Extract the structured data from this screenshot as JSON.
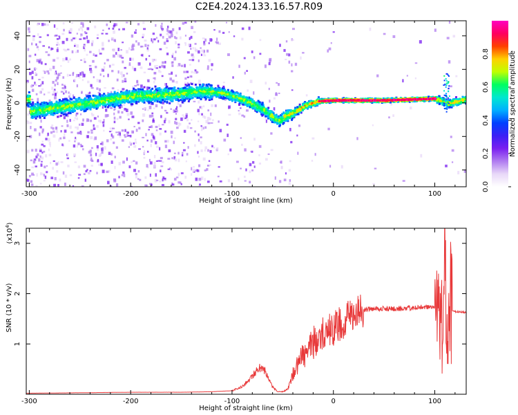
{
  "title": "C2E4.2024.133.16.57.R09",
  "colors": {
    "snr_line": "#e8393a",
    "colormap": [
      "#ffffff",
      "#e8d8f8",
      "#b07cf0",
      "#7a1ff0",
      "#3b1ff5",
      "#0040ff",
      "#00b0ff",
      "#00e8d0",
      "#00ff60",
      "#c0ff00",
      "#ffd000",
      "#ff4000",
      "#ff0060",
      "#ff00c0"
    ]
  },
  "chart_data": [
    {
      "type": "heatmap",
      "xlabel": "Height of straight line (km)",
      "ylabel": "Frequency (Hz)",
      "xlim": [
        -303,
        131
      ],
      "ylim": [
        -50,
        49
      ],
      "xticks": [
        -300,
        -200,
        -100,
        0,
        100
      ],
      "yticks": [
        -40,
        -20,
        0,
        20,
        40
      ],
      "colorbar": {
        "label": "Normalized spectral amplitude",
        "range": [
          0,
          1
        ],
        "ticks": [
          "0.0",
          "0.2",
          "0.4",
          "0.6",
          "0.8"
        ],
        "tick_values": [
          0,
          0.2,
          0.4,
          0.6,
          0.8
        ]
      },
      "ridge": [
        {
          "x": -300,
          "y": -5
        },
        {
          "x": -250,
          "y": -1
        },
        {
          "x": -200,
          "y": 4
        },
        {
          "x": -160,
          "y": 5
        },
        {
          "x": -130,
          "y": 7
        },
        {
          "x": -110,
          "y": 6
        },
        {
          "x": -90,
          "y": 2
        },
        {
          "x": -70,
          "y": -4
        },
        {
          "x": -55,
          "y": -11
        },
        {
          "x": -48,
          "y": -8
        },
        {
          "x": -40,
          "y": -6
        },
        {
          "x": -30,
          "y": -2
        },
        {
          "x": -15,
          "y": 1
        },
        {
          "x": 0,
          "y": 1.5
        },
        {
          "x": 50,
          "y": 1.5
        },
        {
          "x": 100,
          "y": 2.5
        },
        {
          "x": 112,
          "y": -0.5
        },
        {
          "x": 131,
          "y": 2
        }
      ]
    },
    {
      "type": "line",
      "xlabel": "Height of straight line (km)",
      "ylabel": "SNR (10 * v/v)",
      "y_multiplier": "(x10",
      "y_multiplier_exp": "4",
      "xlim": [
        -303,
        131
      ],
      "ylim": [
        0,
        3.3
      ],
      "xticks": [
        -300,
        -200,
        -100,
        0,
        100
      ],
      "yticks": [
        1,
        2,
        3
      ],
      "series": [
        {
          "x": [
            -303,
            -250,
            -200,
            -150,
            -120,
            -100,
            -90,
            -80,
            -75,
            -70,
            -65,
            -60,
            -55,
            -50,
            -45,
            -40,
            -35,
            -30,
            -25,
            -20,
            -15,
            -10,
            -5,
            0,
            10,
            20,
            30,
            40,
            60,
            80,
            100,
            104,
            106,
            108,
            110,
            112,
            114,
            116,
            131
          ],
          "y": [
            0.02,
            0.03,
            0.04,
            0.04,
            0.05,
            0.07,
            0.15,
            0.35,
            0.5,
            0.55,
            0.35,
            0.15,
            0.05,
            0.05,
            0.1,
            0.4,
            0.6,
            0.75,
            0.9,
            1.0,
            1.1,
            1.2,
            1.25,
            1.3,
            1.45,
            1.6,
            1.68,
            1.7,
            1.7,
            1.72,
            1.75,
            1.6,
            1.2,
            1.6,
            2.9,
            0.3,
            2.3,
            1.65,
            1.63
          ]
        }
      ]
    }
  ]
}
